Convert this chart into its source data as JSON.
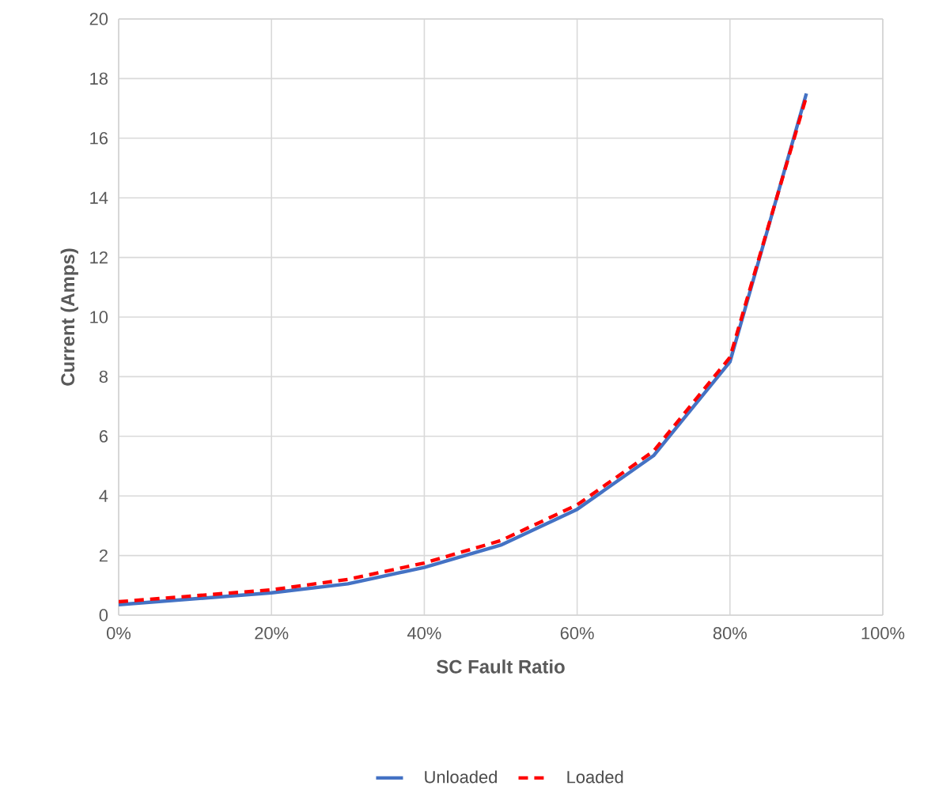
{
  "chart_data": {
    "type": "line",
    "xlabel": "SC  Fault Ratio",
    "ylabel": "Current (Amps)",
    "x": [
      0,
      10,
      20,
      30,
      40,
      50,
      60,
      70,
      80,
      90
    ],
    "series": [
      {
        "name": "Unloaded",
        "color": "#4472c4",
        "line_style": "solid",
        "values": [
          0.35,
          0.55,
          0.75,
          1.05,
          1.6,
          2.35,
          3.55,
          5.35,
          8.5,
          17.5
        ]
      },
      {
        "name": "Loaded",
        "color": "#ff0000",
        "line_style": "dashed",
        "values": [
          0.45,
          0.65,
          0.85,
          1.2,
          1.75,
          2.5,
          3.7,
          5.5,
          8.65,
          17.4
        ]
      }
    ],
    "xlim": [
      0,
      100
    ],
    "ylim": [
      0,
      20
    ],
    "xticks": [
      {
        "value": 0,
        "label": "0%"
      },
      {
        "value": 20,
        "label": "20%"
      },
      {
        "value": 40,
        "label": "40%"
      },
      {
        "value": 60,
        "label": "60%"
      },
      {
        "value": 80,
        "label": "80%"
      },
      {
        "value": 100,
        "label": "100%"
      }
    ],
    "yticks": [
      0,
      2,
      4,
      6,
      8,
      10,
      12,
      14,
      16,
      18,
      20
    ],
    "grid": true,
    "legend": "bottom",
    "marker": "none"
  }
}
